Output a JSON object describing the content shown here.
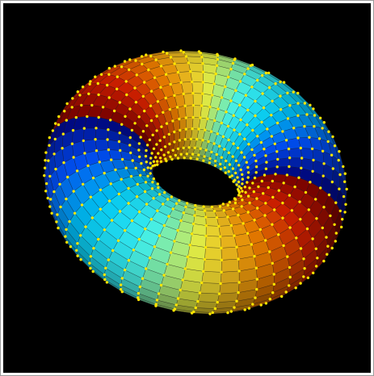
{
  "scene": {
    "subject": "torus-surface-with-mesh",
    "background_color": "#000000",
    "frame_color": "#9a9a9a",
    "vertex_marker_color": "#ffe600",
    "mesh_line_color": "#1a1a1a",
    "colormap": [
      "#00007f",
      "#0050ff",
      "#00d0ff",
      "#40ffff",
      "#ffff40",
      "#ff9000",
      "#e02000",
      "#800000"
    ]
  }
}
